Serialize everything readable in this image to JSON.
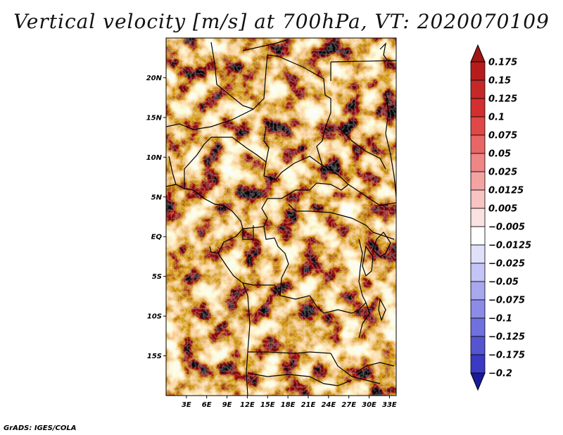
{
  "title": "Vertical velocity [m/s] at 700hPa, VT: 2020070109",
  "credit": "GrADS: IGES/COLA",
  "map": {
    "lon_range": [
      0,
      34
    ],
    "lat_range": [
      -20,
      25
    ],
    "lat_ticks": [
      {
        "lat": 20,
        "label": "20N"
      },
      {
        "lat": 15,
        "label": "15N"
      },
      {
        "lat": 10,
        "label": "10N"
      },
      {
        "lat": 5,
        "label": "5N"
      },
      {
        "lat": 0,
        "label": "EQ"
      },
      {
        "lat": -5,
        "label": "5S"
      },
      {
        "lat": -10,
        "label": "10S"
      },
      {
        "lat": -15,
        "label": "15S"
      }
    ],
    "lon_ticks": [
      {
        "lon": 3,
        "label": "3E"
      },
      {
        "lon": 6,
        "label": "6E"
      },
      {
        "lon": 9,
        "label": "9E"
      },
      {
        "lon": 12,
        "label": "12E"
      },
      {
        "lon": 15,
        "label": "15E"
      },
      {
        "lon": 18,
        "label": "18E"
      },
      {
        "lon": 21,
        "label": "21E"
      },
      {
        "lon": 24,
        "label": "24E"
      },
      {
        "lon": 27,
        "label": "27E"
      },
      {
        "lon": 30,
        "label": "30E"
      },
      {
        "lon": 33,
        "label": "33E"
      }
    ]
  },
  "colorbar": {
    "levels": [
      {
        "label": "0.175",
        "color": "#b71c1c"
      },
      {
        "label": "0.15",
        "color": "#c62828"
      },
      {
        "label": "0.125",
        "color": "#d32f2f"
      },
      {
        "label": "0.1",
        "color": "#e04848"
      },
      {
        "label": "0.075",
        "color": "#e86666"
      },
      {
        "label": "0.05",
        "color": "#ef8585"
      },
      {
        "label": "0.025",
        "color": "#f4a3a3"
      },
      {
        "label": "0.0125",
        "color": "#f8c3c3"
      },
      {
        "label": "0.005",
        "color": "#fbe1e1"
      },
      {
        "label": "−0.005",
        "color": "#ffffff"
      },
      {
        "label": "−0.0125",
        "color": "#e0e0fb"
      },
      {
        "label": "−0.025",
        "color": "#c4c4f6"
      },
      {
        "label": "−0.05",
        "color": "#a8a8ef"
      },
      {
        "label": "−0.075",
        "color": "#8c8ce7"
      },
      {
        "label": "−0.1",
        "color": "#7070de"
      },
      {
        "label": "−0.125",
        "color": "#5555d2"
      },
      {
        "label": "−0.175",
        "color": "#3a3ac4"
      },
      {
        "label": "−0.2",
        "color": "#2222b0"
      }
    ],
    "top_color": "#a31414",
    "bottom_color": "#1a1a99"
  }
}
